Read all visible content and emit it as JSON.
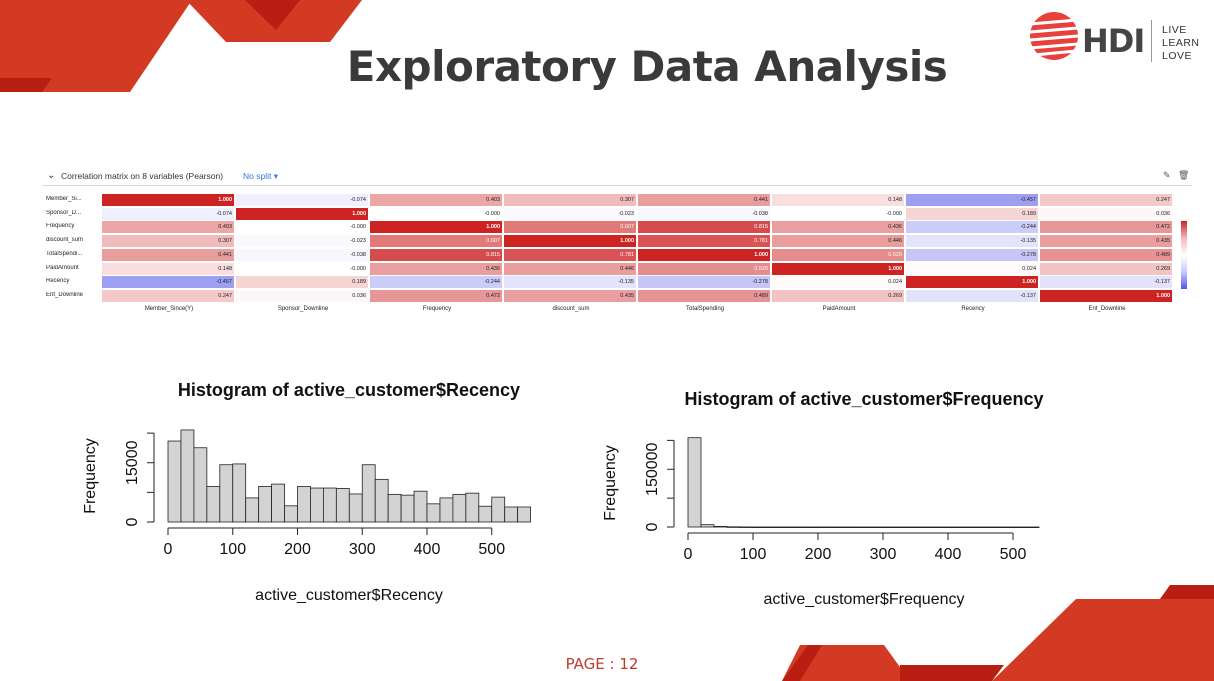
{
  "slide": {
    "title": "Exploratory Data Analysis",
    "page_label": "PAGE : 12",
    "colors": {
      "accent_red": "#d33a24",
      "dark_red": "#b81f12",
      "title_gray": "#3a3a3a"
    }
  },
  "logo": {
    "name": "HDI",
    "tagline": [
      "LIVE",
      "LEARN",
      "LOVE"
    ]
  },
  "correlation": {
    "title": "Correlation matrix on 8 variables (Pearson)",
    "split_label": "No split",
    "row_labels": [
      "Member_Si...",
      "Sponsor_D...",
      "Frequency",
      "discount_sum",
      "TotalSpendi...",
      "PaidAmount",
      "Recency",
      "Ent_Downline"
    ],
    "col_labels": [
      "Member_Since(Y)",
      "Sponsor_Downline",
      "Frequency",
      "discount_sum",
      "TotalSpending",
      "PaidAmount",
      "Recency",
      "Ent_Downline"
    ],
    "values": [
      [
        "1.000",
        "-0.074",
        "0.403",
        "0.307",
        "0.441",
        "0.148",
        "-0.457",
        "0.247"
      ],
      [
        "-0.074",
        "1.000",
        "-0.000",
        "-0.023",
        "-0.038",
        "-0.000",
        "0.189",
        "0.036"
      ],
      [
        "0.403",
        "-0.000",
        "1.000",
        "0.607",
        "0.815",
        "0.436",
        "-0.244",
        "0.472"
      ],
      [
        "0.307",
        "-0.023",
        "0.607",
        "1.000",
        "0.781",
        "0.446",
        "-0.135",
        "0.435"
      ],
      [
        "0.441",
        "-0.038",
        "0.815",
        "0.781",
        "1.000",
        "0.520",
        "-0.278",
        "0.489"
      ],
      [
        "0.148",
        "-0.000",
        "0.436",
        "0.446",
        "0.520",
        "1.000",
        "0.024",
        "0.269"
      ],
      [
        "-0.457",
        "0.189",
        "-0.244",
        "-0.135",
        "-0.278",
        "0.024",
        "1.000",
        "-0.137"
      ],
      [
        "0.247",
        "0.036",
        "0.472",
        "0.435",
        "0.489",
        "0.269",
        "-0.137",
        "1.000"
      ]
    ],
    "legend_ticks": [
      "1",
      "0"
    ]
  },
  "chart_data": [
    {
      "type": "bar",
      "title": "Histogram of active_customer$Recency",
      "xlabel": "active_customer$Recency",
      "ylabel": "Frequency",
      "x_ticks": [
        "0",
        "100",
        "200",
        "300",
        "400",
        "500"
      ],
      "y_ticks": [
        "0",
        "15000"
      ],
      "bin_width": 20,
      "x_start": 0,
      "values": [
        20500,
        23300,
        18800,
        9000,
        14500,
        14700,
        6100,
        9000,
        9600,
        4100,
        9000,
        8600,
        8600,
        8500,
        7100,
        14500,
        10800,
        7000,
        6800,
        7800,
        4600,
        6100,
        7000,
        7300,
        4000,
        6300,
        3800,
        3800
      ]
    },
    {
      "type": "bar",
      "title": "Histogram of active_customer$Frequency",
      "xlabel": "active_customer$Frequency",
      "ylabel": "Frequency",
      "x_ticks": [
        "0",
        "100",
        "200",
        "300",
        "400",
        "500"
      ],
      "y_ticks": [
        "0",
        "150000"
      ],
      "bin_width": 20,
      "x_start": 0,
      "values": [
        232000,
        6000,
        1500,
        500,
        200,
        100,
        100,
        50,
        50,
        30,
        30,
        20,
        20,
        10,
        10,
        10,
        10,
        10,
        10,
        10,
        10,
        10,
        10,
        10,
        10,
        10,
        10
      ]
    }
  ]
}
